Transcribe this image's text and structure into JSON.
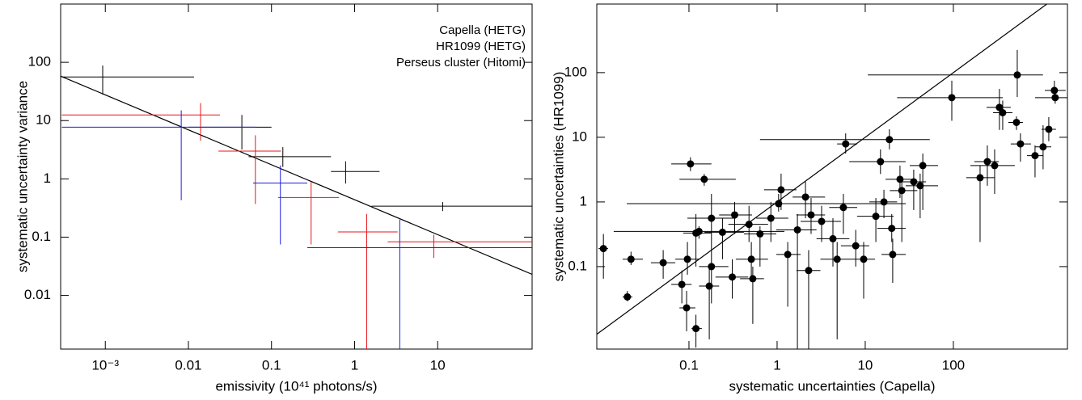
{
  "chart_data": [
    {
      "type": "scatter",
      "xscale": "log",
      "yscale": "log",
      "xlabel": "emissivity (10⁴¹ photons/s)",
      "ylabel": "systematic uncertainty variance",
      "xlim": [
        0.00029,
        137
      ],
      "ylim": [
        0.0012,
        1000
      ],
      "xticks": [
        {
          "value": 0.001,
          "label": "10⁻³"
        },
        0.01,
        0.1,
        1,
        10
      ],
      "yticks": [
        0.01,
        0.1,
        1,
        10,
        100
      ],
      "legend": "upper right",
      "series": [
        {
          "name": "Capella (HETG)",
          "color": "#000000",
          "x": [
            0.00093,
            0.044,
            0.137,
            0.78,
            11.5
          ],
          "y": [
            56,
            7.7,
            2.4,
            1.34,
            0.34
          ],
          "x_lo": [
            0.0003,
            0.01,
            0.053,
            0.52,
            1.6
          ],
          "x_hi": [
            0.0117,
            0.1,
            0.52,
            2.0,
            137
          ],
          "y_lo": [
            28,
            3.2,
            1.6,
            0.83,
            0.28
          ],
          "y_hi": [
            88,
            12.5,
            3.5,
            2.0,
            0.4
          ]
        },
        {
          "name": "HR1099 (HETG)",
          "color": "#e8141c",
          "x": [
            0.014,
            0.064,
            0.3,
            1.4,
            9
          ],
          "y": [
            12.5,
            3.0,
            0.48,
            0.123,
            0.083
          ],
          "x_lo": [
            0.0003,
            0.023,
            0.12,
            0.63,
            2.5
          ],
          "x_hi": [
            0.024,
            0.13,
            0.65,
            3.3,
            137
          ],
          "y_lo": [
            4.5,
            0.37,
            0.075,
            0.0012,
            0.044
          ],
          "y_hi": [
            20,
            5.6,
            0.88,
            0.25,
            0.11
          ]
        },
        {
          "name": "Perseus cluster (Hitomi)",
          "color": "#1c1ce0",
          "x": [
            0.0082,
            0.128,
            3.5
          ],
          "y": [
            7.7,
            0.85,
            0.066
          ],
          "x_lo": [
            0.0003,
            0.06,
            0.27
          ],
          "x_hi": [
            0.064,
            0.27,
            137
          ],
          "y_lo": [
            0.43,
            0.075,
            0.0012
          ],
          "y_hi": [
            15,
            1.7,
            0.2
          ]
        }
      ],
      "lines": [
        {
          "color": "#000000",
          "x": [
            0.00029,
            137
          ],
          "y": [
            58,
            0.023
          ]
        }
      ]
    },
    {
      "type": "scatter",
      "xscale": "log",
      "yscale": "log",
      "marker": "circle",
      "xlabel": "systematic uncertainties (Capella)",
      "ylabel": "systematic uncertainties (HR1099)",
      "xlim": [
        0.009,
        1970
      ],
      "ylim": [
        0.0053,
        1150
      ],
      "xticks": [
        0.1,
        1,
        10,
        100
      ],
      "yticks": [
        0.1,
        1,
        10,
        100
      ],
      "series": [
        {
          "color": "#000000",
          "x": [
            531,
            96,
            1400,
            1430,
            333,
            363,
            520,
            1043,
            1210,
            577,
            845,
            294,
            243,
            18.8,
            6,
            14.9,
            0.104,
            0.149,
            24.8,
            42,
            45,
            26,
            16.3,
            2.1,
            1.11,
            1.04,
            0.18,
            0.33,
            0.85,
            2.43,
            5.65,
            13.2,
            20,
            7.8,
            3.2,
            1.7,
            0.64,
            0.48,
            0.24,
            0.12,
            0.13,
            0.51,
            0.31,
            0.18,
            0.17,
            0.083,
            0.096,
            0.051,
            0.0107,
            0.022,
            0.02,
            0.094,
            0.12,
            4.3,
            4.8,
            2.28,
            9.6,
            20.5,
            201,
            35.5,
            0.53,
            1.32
          ],
          "y": [
            92,
            41,
            53,
            41,
            29,
            24,
            17,
            7.1,
            13.3,
            7.9,
            5.2,
            3.65,
            4.2,
            9.2,
            7.9,
            4.2,
            3.87,
            2.24,
            2.24,
            1.78,
            3.65,
            1.5,
            1,
            1.19,
            1.54,
            0.94,
            0.56,
            0.63,
            0.56,
            0.63,
            0.82,
            0.6,
            0.39,
            0.21,
            0.5,
            0.37,
            0.32,
            0.45,
            0.34,
            0.33,
            0.35,
            0.13,
            0.069,
            0.1,
            0.05,
            0.053,
            0.13,
            0.115,
            0.19,
            0.13,
            0.034,
            0.023,
            0.011,
            0.27,
            0.13,
            0.087,
            0.13,
            0.154,
            2.37,
            2.05,
            0.065,
            0.154
          ],
          "x_lo": [
            10.7,
            23,
            1090,
            845,
            238,
            282,
            421,
            845,
            1000,
            448,
            684,
            156,
            173,
            0.64,
            4.8,
            6.6,
            0.063,
            0.078,
            17,
            28.8,
            32,
            19,
            11.1,
            1.5,
            0.71,
            0.0197,
            0.096,
            0.22,
            0.58,
            1.66,
            3.9,
            8.1,
            13.7,
            5.3,
            1.85,
            0.98,
            0.42,
            0.28,
            0.15,
            0.086,
            0.014,
            0.34,
            0.2,
            0.13,
            0.13,
            0.063,
            0.07,
            0.037,
            0.0094,
            0.0177,
            0.0177,
            0.078,
            0.107,
            2.8,
            3.1,
            1.66,
            7.3,
            15.3,
            140,
            26,
            0.38,
            0.98
          ],
          "x_hi": [
            1040,
            363,
            1880,
            1970,
            448,
            468,
            615,
            1290,
            1460,
            760,
            1040,
            498,
            327,
            54,
            8.1,
            28.7,
            0.18,
            0.34,
            35.5,
            67,
            67,
            39,
            23,
            3.5,
            1.66,
            28.8,
            0.34,
            0.52,
            1.34,
            3.5,
            8.1,
            21,
            28.8,
            11.1,
            5.3,
            2.8,
            0.98,
            0.79,
            0.42,
            0.18,
            1.21,
            0.79,
            0.47,
            0.28,
            0.22,
            0.107,
            0.13,
            0.07,
            0.0121,
            0.03,
            0.0228,
            0.118,
            0.14,
            6.6,
            7.3,
            3.1,
            12.9,
            28.8,
            294,
            49,
            0.71,
            1.85
          ],
          "y_lo": [
            42,
            18,
            37,
            33,
            13,
            13,
            13,
            3.2,
            8.7,
            4.2,
            2.4,
            1.33,
            1.78,
            6.5,
            5.6,
            2.7,
            3.0,
            1.78,
            1.15,
            0.56,
            0.75,
            0.24,
            0.56,
            0.56,
            0.75,
            0.71,
            0.18,
            0.32,
            0.24,
            0.32,
            0.32,
            0.24,
            0.24,
            0.1,
            0.24,
            0.0053,
            0.1,
            0.24,
            0.13,
            0.1,
            0.27,
            0.065,
            0.032,
            0.027,
            0.0075,
            0.027,
            0.075,
            0.065,
            0.065,
            0.106,
            0.029,
            0.01,
            0.0056,
            0.1,
            0.0075,
            0.0053,
            0.032,
            0.056,
            0.24,
            0.75,
            0.013,
            0.024
          ],
          "y_hi": [
            224,
            75,
            75,
            56,
            56,
            37,
            21,
            15.4,
            20.5,
            11.5,
            7.5,
            6.5,
            7.5,
            13.3,
            11.5,
            6.5,
            4.9,
            2.7,
            3.65,
            2.74,
            5.6,
            2.37,
            1.54,
            2.05,
            2.74,
            1.33,
            1.33,
            1,
            1,
            1.15,
            1.33,
            1.15,
            0.65,
            0.37,
            0.87,
            0.65,
            0.42,
            0.87,
            0.56,
            0.65,
            0.42,
            0.24,
            0.13,
            0.18,
            0.1,
            0.087,
            0.24,
            0.18,
            0.32,
            0.17,
            0.042,
            0.042,
            0.018,
            0.56,
            0.24,
            0.18,
            0.24,
            0.27,
            3.65,
            3.16,
            0.1,
            0.24
          ]
        }
      ],
      "lines": [
        {
          "color": "#000000",
          "x": [
            0.009,
            1970
          ],
          "y": [
            0.009,
            1970
          ]
        }
      ]
    }
  ]
}
